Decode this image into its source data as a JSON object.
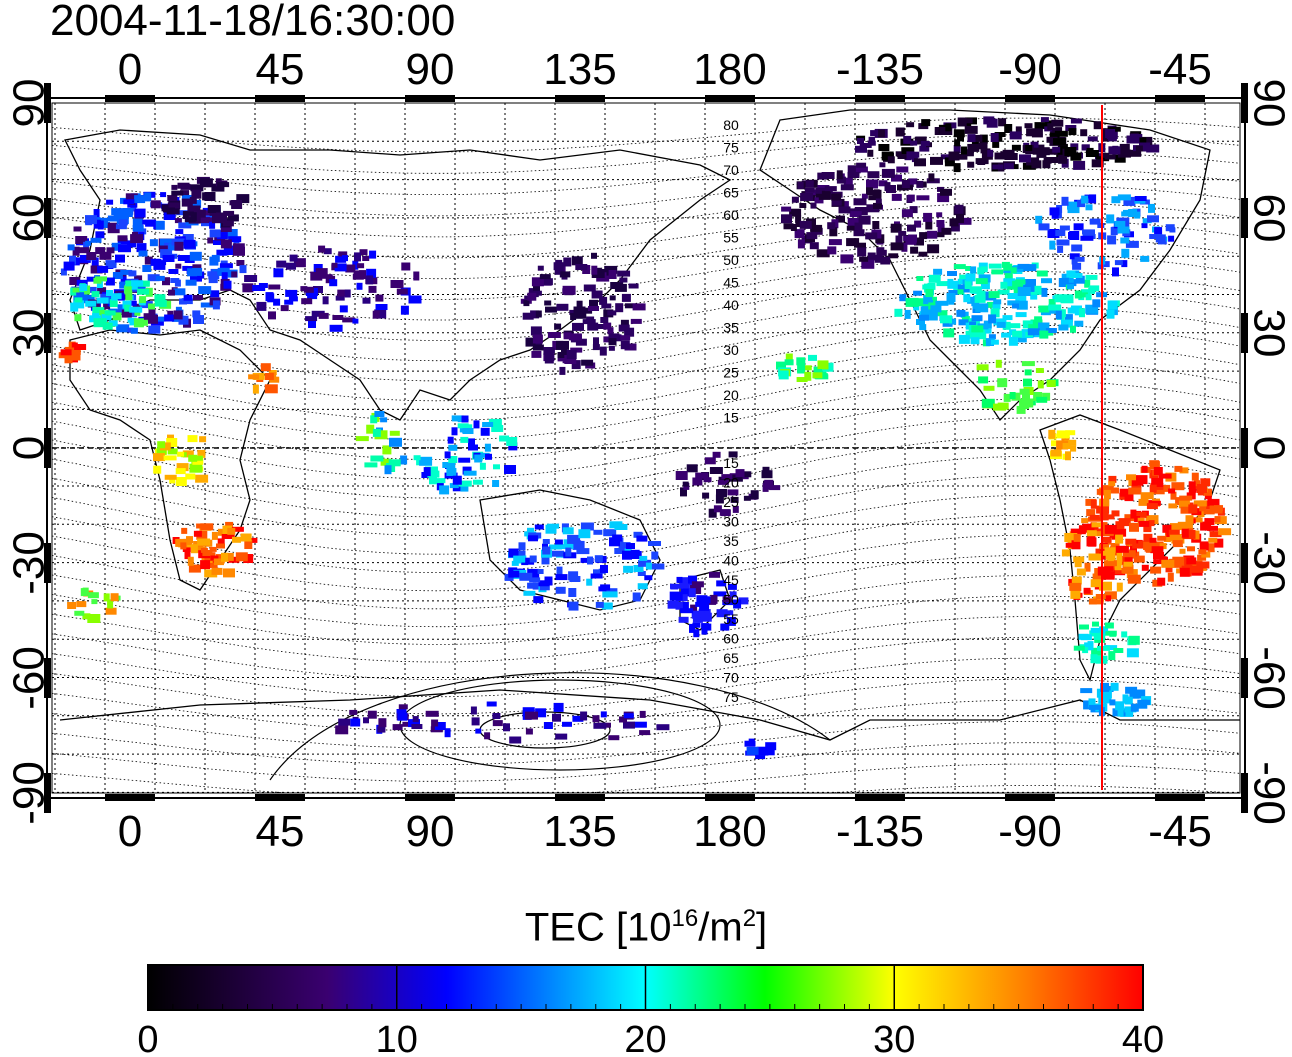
{
  "timestamp": "2004-11-18/16:30:00",
  "map": {
    "top_lon_labels": [
      "0",
      "45",
      "90",
      "135",
      "180",
      "-135",
      "-90",
      "-45"
    ],
    "bottom_lon_labels": [
      "0",
      "45",
      "90",
      "135",
      "180",
      "-135",
      "-90",
      "-45"
    ],
    "left_lat_labels": [
      "90",
      "60",
      "30",
      "0",
      "-30",
      "-60",
      "-90"
    ],
    "right_lat_labels": [
      "90",
      "60",
      "30",
      "0",
      "-30",
      "-60",
      "-90"
    ],
    "contour_labels": [
      "80",
      "75",
      "70",
      "65",
      "60",
      "55",
      "50",
      "45",
      "40",
      "35",
      "30",
      "25",
      "20",
      "15",
      "15",
      "20",
      "25",
      "30",
      "35",
      "40",
      "45",
      "50",
      "55",
      "60",
      "65",
      "70",
      "75"
    ],
    "meridian_line_color": "#ff0000"
  },
  "colorbar": {
    "title_main": "TEC  [10",
    "title_sup1": "16",
    "title_mid": "/m",
    "title_sup2": "2",
    "title_end": "]",
    "ticks": [
      "0",
      "10",
      "20",
      "30",
      "40"
    ],
    "colors": [
      "#000000",
      "#3a0070",
      "#0000ff",
      "#00ffff",
      "#00ff00",
      "#ffff00",
      "#ff0000"
    ]
  }
}
